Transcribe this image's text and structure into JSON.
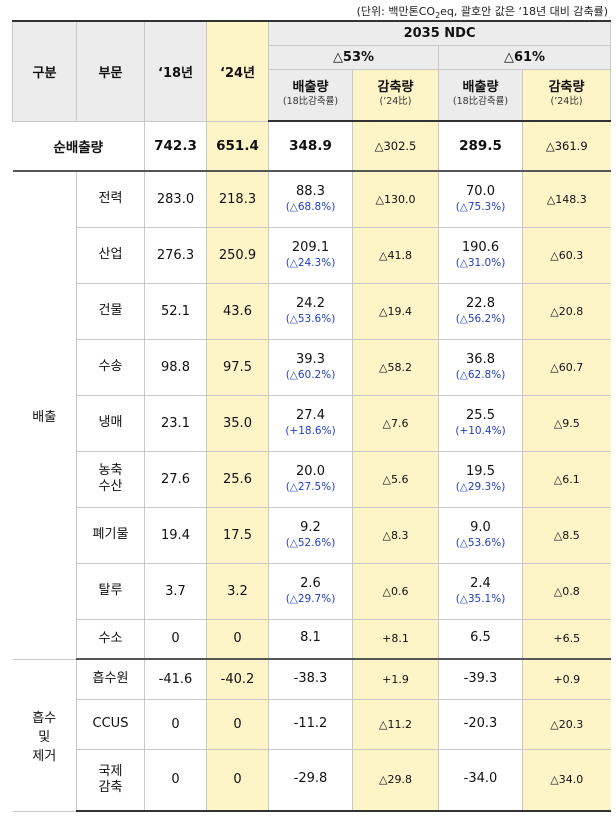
{
  "unit_note_prefix": "(단위: 백만톤CO",
  "unit_note_sub": "2",
  "unit_note_suffix": "eq, 괄호안 값은 ‘18년 대비 감축률)",
  "header": {
    "col_category": "구분",
    "col_sector": "부문",
    "col_2018": "‘18년",
    "col_2024": "‘24년",
    "ndc_title": "2035 NDC",
    "scenario_a": "△53%",
    "scenario_b": "△61%",
    "emission_label": "배출량",
    "emission_sub": "(18比감축률)",
    "reduction_label": "감축량",
    "reduction_sub": "(’24比)"
  },
  "total": {
    "label": "순배출량",
    "y2018": "742.3",
    "y2024": "651.4",
    "a_emission": "348.9",
    "a_reduction": "△302.5",
    "b_emission": "289.5",
    "b_reduction": "△361.9"
  },
  "groups": [
    {
      "category": "배출",
      "rows": [
        {
          "sector": "전력",
          "y2018": "283.0",
          "y2024": "218.3",
          "a_emission": "88.3",
          "a_pct": "(△68.8%)",
          "a_reduction": "△130.0",
          "b_emission": "70.0",
          "b_pct": "(△75.3%)",
          "b_reduction": "△148.3"
        },
        {
          "sector": "산업",
          "y2018": "276.3",
          "y2024": "250.9",
          "a_emission": "209.1",
          "a_pct": "(△24.3%)",
          "a_reduction": "△41.8",
          "b_emission": "190.6",
          "b_pct": "(△31.0%)",
          "b_reduction": "△60.3"
        },
        {
          "sector": "건물",
          "y2018": "52.1",
          "y2024": "43.6",
          "a_emission": "24.2",
          "a_pct": "(△53.6%)",
          "a_reduction": "△19.4",
          "b_emission": "22.8",
          "b_pct": "(△56.2%)",
          "b_reduction": "△20.8"
        },
        {
          "sector": "수송",
          "y2018": "98.8",
          "y2024": "97.5",
          "a_emission": "39.3",
          "a_pct": "(△60.2%)",
          "a_reduction": "△58.2",
          "b_emission": "36.8",
          "b_pct": "(△62.8%)",
          "b_reduction": "△60.7"
        },
        {
          "sector": "냉매",
          "y2018": "23.1",
          "y2024": "35.0",
          "a_emission": "27.4",
          "a_pct": "(+18.6%)",
          "a_reduction": "△7.6",
          "b_emission": "25.5",
          "b_pct": "(+10.4%)",
          "b_reduction": "△9.5"
        },
        {
          "sector": "농축\n수산",
          "y2018": "27.6",
          "y2024": "25.6",
          "a_emission": "20.0",
          "a_pct": "(△27.5%)",
          "a_reduction": "△5.6",
          "b_emission": "19.5",
          "b_pct": "(△29.3%)",
          "b_reduction": "△6.1"
        },
        {
          "sector": "폐기물",
          "y2018": "19.4",
          "y2024": "17.5",
          "a_emission": "9.2",
          "a_pct": "(△52.6%)",
          "a_reduction": "△8.3",
          "b_emission": "9.0",
          "b_pct": "(△53.6%)",
          "b_reduction": "△8.5"
        },
        {
          "sector": "탈루",
          "y2018": "3.7",
          "y2024": "3.2",
          "a_emission": "2.6",
          "a_pct": "(△29.7%)",
          "a_reduction": "△0.6",
          "b_emission": "2.4",
          "b_pct": "(△35.1%)",
          "b_reduction": "△0.8"
        },
        {
          "sector": "수소",
          "y2018": "0",
          "y2024": "0",
          "a_emission": "8.1",
          "a_pct": "",
          "a_reduction": "+8.1",
          "b_emission": "6.5",
          "b_pct": "",
          "b_reduction": "+6.5"
        }
      ]
    },
    {
      "category": "흡수\n및\n제거",
      "rows": [
        {
          "sector": "흡수원",
          "y2018": "-41.6",
          "y2024": "-40.2",
          "a_emission": "-38.3",
          "a_pct": "",
          "a_reduction": "+1.9",
          "b_emission": "-39.3",
          "b_pct": "",
          "b_reduction": "+0.9"
        },
        {
          "sector": "CCUS",
          "y2018": "0",
          "y2024": "0",
          "a_emission": "-11.2",
          "a_pct": "",
          "a_reduction": "△11.2",
          "b_emission": "-20.3",
          "b_pct": "",
          "b_reduction": "△20.3"
        },
        {
          "sector": "국제\n감축",
          "y2018": "0",
          "y2024": "0",
          "a_emission": "-29.8",
          "a_pct": "",
          "a_reduction": "△29.8",
          "b_emission": "-34.0",
          "b_pct": "",
          "b_reduction": "△34.0"
        }
      ]
    }
  ]
}
